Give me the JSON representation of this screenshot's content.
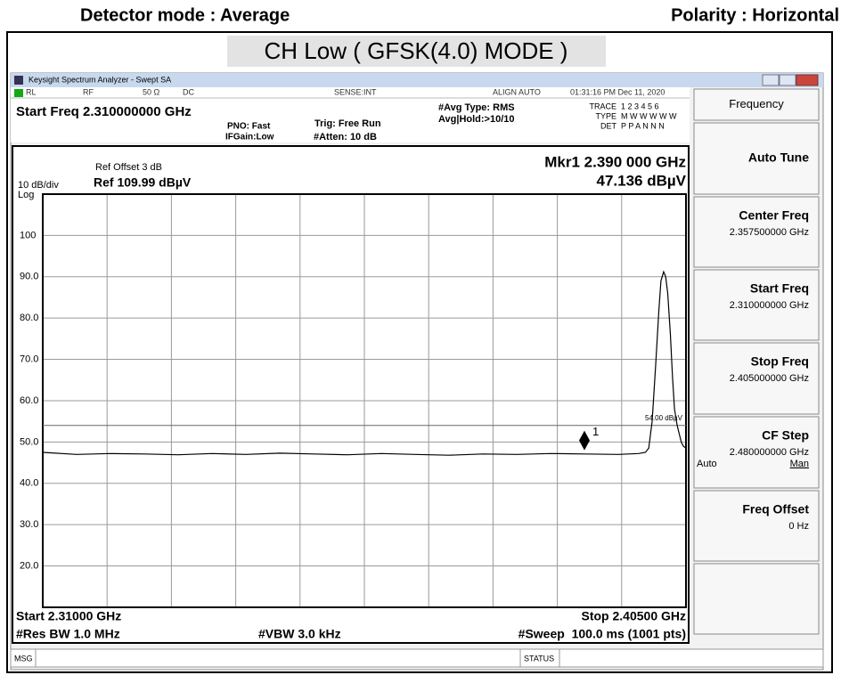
{
  "header": {
    "detector": "Detector mode : Average",
    "polarity": "Polarity : Horizontal",
    "title": "CH Low ( GFSK(4.0) MODE )"
  },
  "window": {
    "title": "Keysight Spectrum Analyzer - Swept SA"
  },
  "status_row": {
    "rl": "RL",
    "rf": "RF",
    "impedance": "50 Ω",
    "coupling": "DC",
    "sense": "SENSE:INT",
    "align": "ALIGN AUTO",
    "datetime": "01:31:16 PM Dec 11, 2020"
  },
  "settings": {
    "start_freq": "Start Freq 2.310000000 GHz",
    "pno": "PNO: Fast",
    "ifgain": "IFGain:Low",
    "trig": "Trig: Free Run",
    "atten": "#Atten: 10 dB",
    "avg_type": "#Avg Type: RMS",
    "avg_hold": "Avg|Hold:>10/10",
    "trace_label": "TRACE",
    "trace": "1 2 3 4 5 6",
    "type_label": "TYPE",
    "type": "M W W W W W",
    "det_label": "DET",
    "det": "P P A N N N"
  },
  "display": {
    "ref_offset": "Ref Offset 3 dB",
    "scale": "10 dB/div",
    "ref_level": "Ref 109.99 dBµV",
    "log": "Log",
    "marker_freq": "Mkr1 2.390 000 GHz",
    "marker_level": "47.136 dBµV"
  },
  "footer": {
    "start": "Start 2.31000 GHz",
    "stop": "Stop 2.40500 GHz",
    "rbw": "#Res BW 1.0 MHz",
    "vbw": "#VBW 3.0 kHz",
    "sweep": "#Sweep  100.0 ms (1001 pts)",
    "msg": "MSG",
    "status": "STATUS"
  },
  "softkeys": [
    {
      "label": "Frequency"
    },
    {
      "label": "Auto Tune"
    },
    {
      "label": "Center Freq",
      "value": "2.357500000 GHz"
    },
    {
      "label": "Start Freq",
      "value": "2.310000000 GHz"
    },
    {
      "label": "Stop Freq",
      "value": "2.405000000 GHz"
    },
    {
      "label": "CF Step",
      "value": "2.480000000 GHz",
      "options": [
        "Auto",
        "Man"
      ]
    },
    {
      "label": "Freq Offset",
      "value": "0 Hz"
    }
  ],
  "chart_data": {
    "type": "line",
    "color": "#000000",
    "x": [
      2.31,
      2.315,
      2.32,
      2.325,
      2.33,
      2.335,
      2.34,
      2.345,
      2.35,
      2.355,
      2.36,
      2.365,
      2.37,
      2.375,
      2.38,
      2.385,
      2.39,
      2.395,
      2.398,
      2.399,
      2.3995,
      2.4,
      2.4005,
      2.401,
      2.4013,
      2.4017,
      2.402,
      2.4023,
      2.4027,
      2.403,
      2.4033,
      2.4037,
      2.404,
      2.4043,
      2.4046,
      2.405
    ],
    "values": [
      47.5,
      47.0,
      47.2,
      47.1,
      46.9,
      47.2,
      47.0,
      47.3,
      47.1,
      46.9,
      47.2,
      47.0,
      46.8,
      47.1,
      47.0,
      47.2,
      47.1,
      47.0,
      47.2,
      47.5,
      48.5,
      55,
      68,
      82,
      89,
      91.2,
      90,
      86,
      76,
      66,
      58,
      54,
      52,
      50,
      49,
      48.5
    ],
    "xlim": [
      2.31,
      2.405
    ],
    "ylim": [
      9.99,
      109.99
    ],
    "yticks": [
      100,
      {
        "value": 90,
        "label": "90.0"
      },
      {
        "value": 80,
        "label": "80.0"
      },
      {
        "value": 70,
        "label": "70.0"
      },
      {
        "value": 60,
        "label": "60.0"
      },
      {
        "value": 50,
        "label": "50.0"
      },
      {
        "value": 40,
        "label": "40.0"
      },
      {
        "value": 30,
        "label": "30.0"
      },
      {
        "value": 20,
        "label": "20.0"
      }
    ],
    "grid": true,
    "marker": {
      "label": "1",
      "x": 2.39,
      "value": 47.136
    },
    "display_line": {
      "label": "54.00 dBµV",
      "value": 54
    }
  }
}
